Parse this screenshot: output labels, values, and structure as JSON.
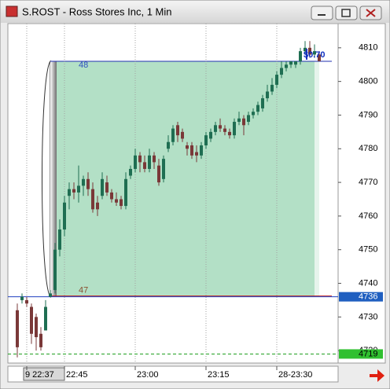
{
  "window": {
    "title": "S.ROST - Ross Stores Inc, 1 Min"
  },
  "chart_data": {
    "type": "candlestick",
    "x": [
      "22:35",
      "22:36",
      "22:37",
      "22:38",
      "22:39",
      "22:40",
      "22:41",
      "22:42",
      "22:43",
      "22:44",
      "22:45",
      "22:46",
      "22:47",
      "22:48",
      "22:49",
      "22:50",
      "22:51",
      "22:52",
      "22:53",
      "22:54",
      "22:55",
      "22:56",
      "22:57",
      "22:58",
      "22:59",
      "23:00",
      "23:01",
      "23:02",
      "23:03",
      "23:04",
      "23:05",
      "23:06",
      "23:07",
      "23:08",
      "23:09",
      "23:10",
      "23:11",
      "23:12",
      "23:13",
      "23:14",
      "23:15",
      "23:16",
      "23:17",
      "23:18",
      "23:19",
      "23:20",
      "23:21",
      "23:22",
      "23:23",
      "23:24",
      "23:25",
      "23:26",
      "23:27",
      "23:28",
      "23:29",
      "23:30",
      "23:31",
      "23:32",
      "23:33",
      "23:34",
      "23:35",
      "23:36",
      "23:37",
      "23:38",
      "23:39"
    ],
    "open": [
      4732,
      4735,
      4735,
      4733,
      4730,
      4725,
      4726,
      4736,
      4738,
      4750,
      4756,
      4766,
      4768,
      4767,
      4769,
      4771,
      4768,
      4764,
      4766,
      4770,
      4767,
      4765,
      4765,
      4763,
      4772,
      4774,
      4778,
      4776,
      4774,
      4778,
      4775,
      4771,
      4780,
      4782,
      4787,
      4785,
      4781,
      4781,
      4779,
      4778,
      4781,
      4783,
      4785,
      4787,
      4786,
      4785,
      4784,
      4788,
      4789,
      4788,
      4790,
      4791,
      4792,
      4795,
      4797,
      4799,
      4802,
      4804,
      4805,
      4805,
      4806,
      4809,
      4810,
      4808,
      4808
    ],
    "high": [
      4734,
      4737,
      4736,
      4734,
      4731,
      4727,
      4735,
      4738,
      4752,
      4759,
      4766,
      4770,
      4770,
      4775,
      4772,
      4773,
      4770,
      4766,
      4773,
      4772,
      4768,
      4767,
      4766,
      4773,
      4775,
      4780,
      4779,
      4778,
      4780,
      4779,
      4777,
      4778,
      4784,
      4787,
      4788,
      4786,
      4782,
      4782,
      4781,
      4782,
      4785,
      4786,
      4788,
      4789,
      4787,
      4786,
      4789,
      4791,
      4790,
      4791,
      4792,
      4794,
      4796,
      4799,
      4801,
      4803,
      4806,
      4806,
      4806,
      4806,
      4810,
      4812,
      4812,
      4811,
      4809
    ],
    "low": [
      4718,
      4734,
      4733,
      4722,
      4720,
      4720,
      4726,
      4736,
      4737,
      4748,
      4754,
      4762,
      4765,
      4764,
      4766,
      4766,
      4761,
      4760,
      4765,
      4766,
      4764,
      4763,
      4762,
      4762,
      4771,
      4773,
      4773,
      4773,
      4773,
      4774,
      4769,
      4770,
      4779,
      4781,
      4782,
      4782,
      4778,
      4777,
      4776,
      4777,
      4780,
      4782,
      4784,
      4785,
      4784,
      4783,
      4783,
      4787,
      4784,
      4787,
      4789,
      4790,
      4791,
      4794,
      4796,
      4798,
      4801,
      4803,
      4804,
      4804,
      4805,
      4808,
      4807,
      4807,
      4806
    ],
    "close": [
      4721,
      4736,
      4734,
      4725,
      4724,
      4721,
      4733,
      4737,
      4750,
      4756,
      4764,
      4768,
      4767,
      4769,
      4771,
      4768,
      4762,
      4762,
      4771,
      4767,
      4765,
      4764,
      4763,
      4771,
      4774,
      4778,
      4776,
      4774,
      4778,
      4776,
      4770,
      4777,
      4782,
      4786,
      4784,
      4783,
      4780,
      4778,
      4778,
      4781,
      4784,
      4785,
      4787,
      4786,
      4785,
      4784,
      4788,
      4789,
      4787,
      4790,
      4791,
      4793,
      4795,
      4797,
      4799,
      4802,
      4804,
      4805,
      4806,
      4806,
      4809,
      4810,
      4808,
      4809,
      4806
    ],
    "up_color": "#1f6e52",
    "down_color": "#7a3838",
    "xlim": [
      "22:33",
      "23:43"
    ],
    "ylim": [
      4716.3,
      4817.2
    ],
    "yticks": [
      4720,
      4730,
      4740,
      4750,
      4760,
      4770,
      4780,
      4790,
      4800,
      4810
    ],
    "xticks": [
      {
        "value": "22:37",
        "label": "9 22:37"
      },
      {
        "value": "22:45",
        "label": "22:45"
      },
      {
        "value": "23:00",
        "label": "23:00"
      },
      {
        "value": "23:15",
        "label": "23:15"
      },
      {
        "value": "23:30",
        "label": "28-23:30"
      }
    ],
    "grid": true,
    "range_box": {
      "from": "22:42",
      "to": "23:39",
      "high": 4806,
      "low": 4736,
      "high_label": "48",
      "low_label": "47",
      "change_label": "$0.70",
      "color": "#b3e0c6"
    },
    "last_price": 4736,
    "alert_price": 4719
  }
}
